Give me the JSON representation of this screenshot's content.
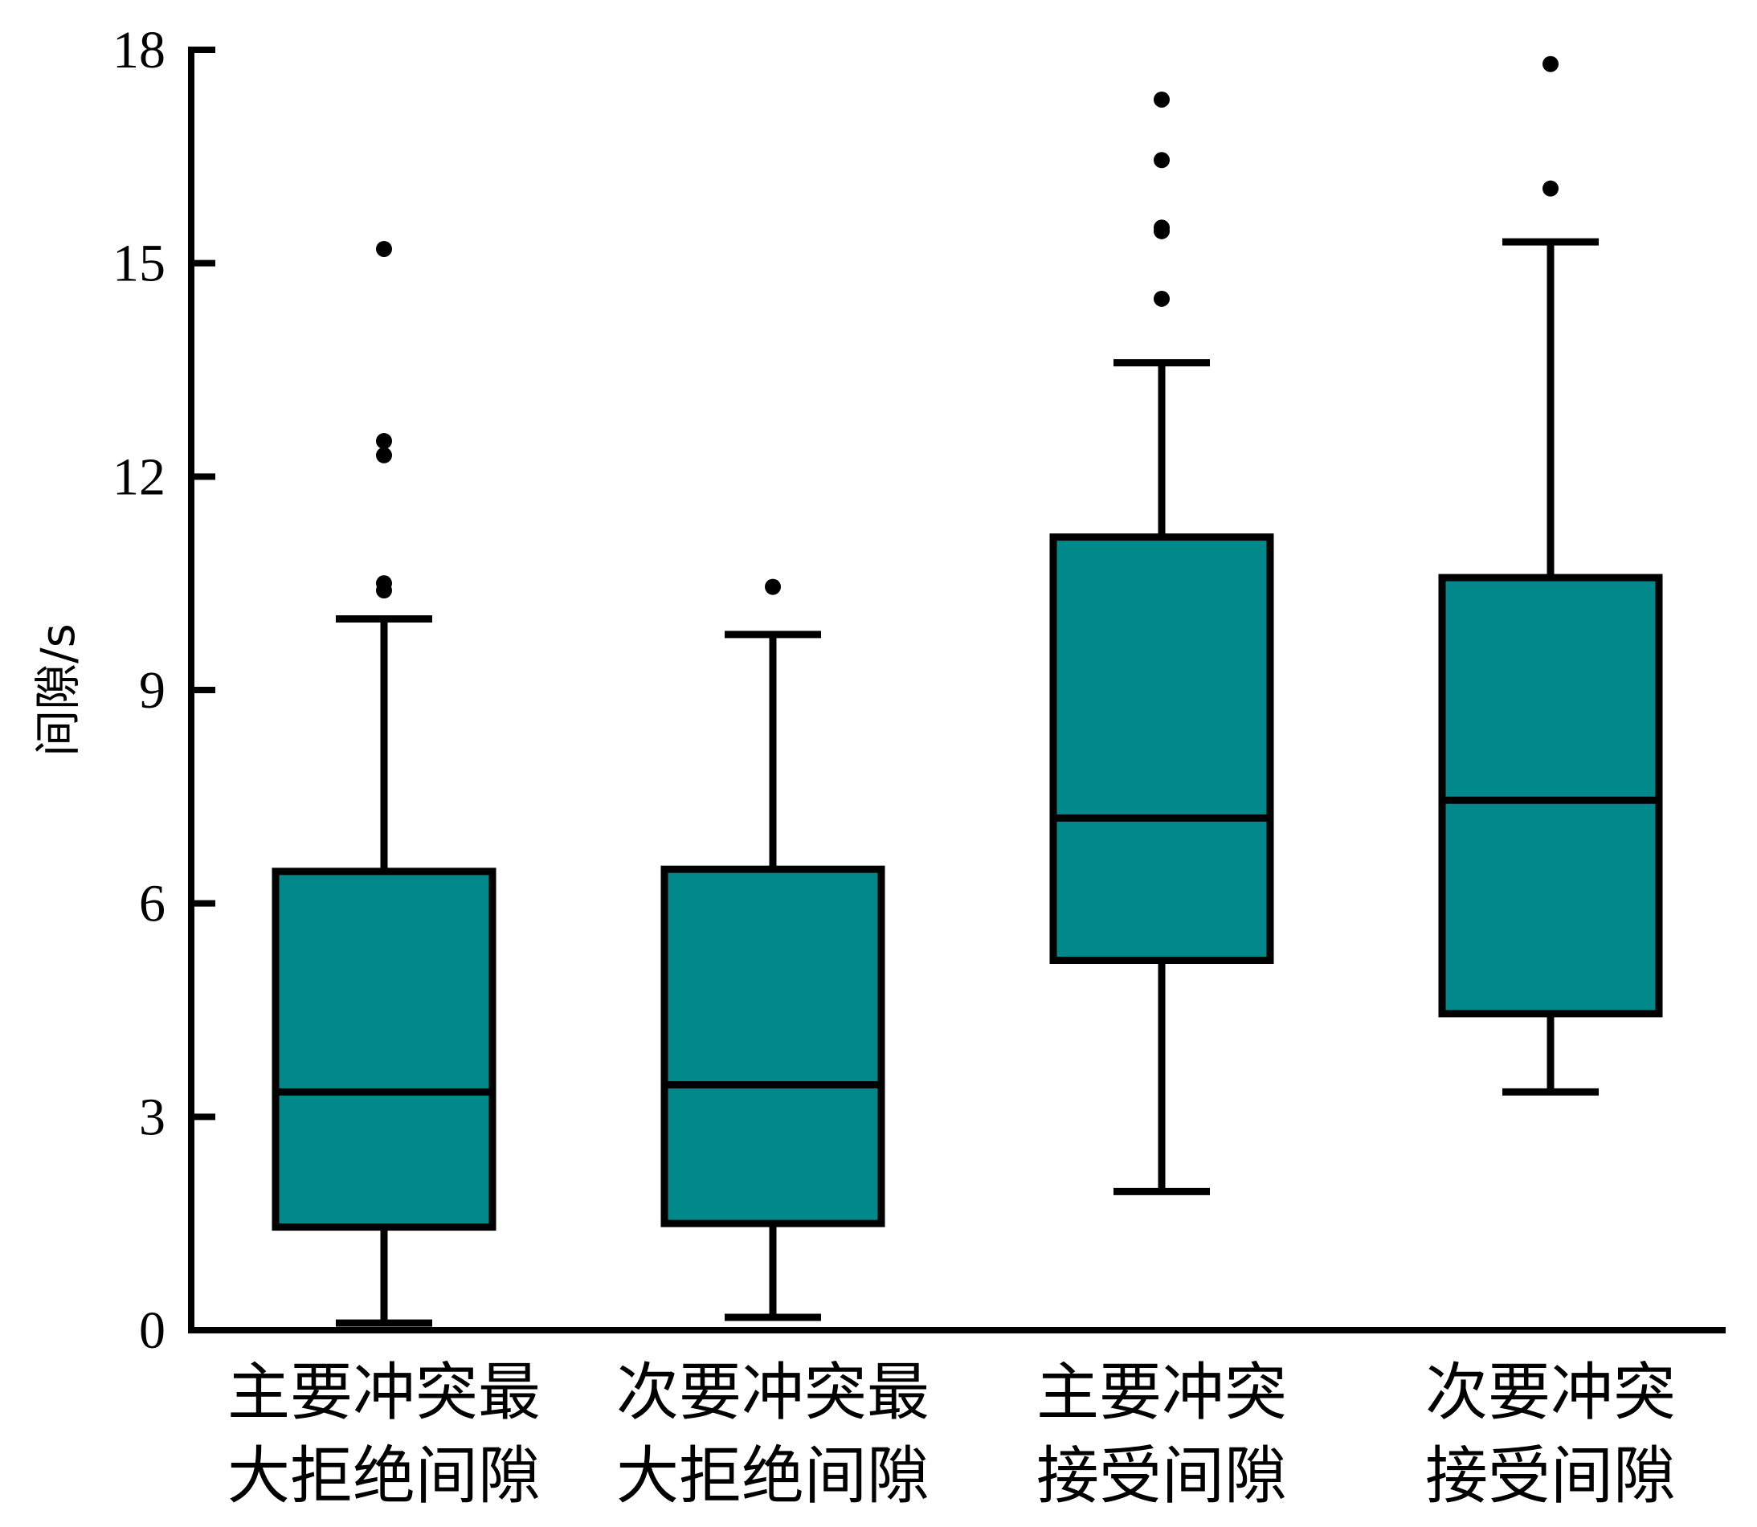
{
  "chart_data": {
    "type": "box",
    "ylabel": "间隙/s",
    "ylim": [
      0,
      18
    ],
    "yticks": [
      0,
      3,
      6,
      9,
      12,
      15,
      18
    ],
    "box_color": "#00888A",
    "categories": [
      [
        "主要冲突最",
        "大拒绝间隙"
      ],
      [
        "次要冲突最",
        "大拒绝间隙"
      ],
      [
        "主要冲突",
        "接受间隙"
      ],
      [
        "次要冲突",
        "接受间隙"
      ]
    ],
    "boxes": [
      {
        "whisker_low": 0.1,
        "q1": 1.45,
        "median": 3.35,
        "q3": 6.45,
        "whisker_high": 10.0,
        "outliers": [
          10.4,
          10.5,
          12.3,
          12.5,
          15.2
        ]
      },
      {
        "whisker_low": 0.18,
        "q1": 1.5,
        "median": 3.45,
        "q3": 6.48,
        "whisker_high": 9.78,
        "outliers": [
          10.45
        ]
      },
      {
        "whisker_low": 1.95,
        "q1": 5.2,
        "median": 7.2,
        "q3": 11.15,
        "whisker_high": 13.6,
        "outliers": [
          14.5,
          15.45,
          15.5,
          16.45,
          17.3
        ]
      },
      {
        "whisker_low": 3.35,
        "q1": 4.45,
        "median": 7.45,
        "q3": 10.58,
        "whisker_high": 15.3,
        "outliers": [
          16.05,
          17.8
        ]
      }
    ]
  }
}
